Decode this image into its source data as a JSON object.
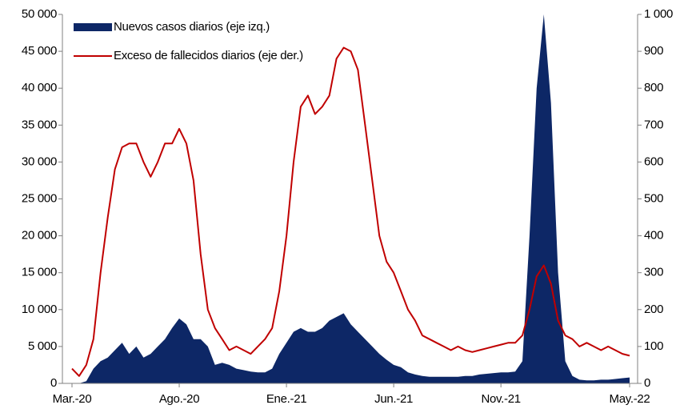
{
  "chart_data": {
    "type": "area-line",
    "categories": [
      "Mar.-20",
      null,
      null,
      null,
      null,
      null,
      null,
      null,
      null,
      null,
      null,
      null,
      null,
      null,
      null,
      "Ago.-20",
      null,
      null,
      null,
      null,
      null,
      null,
      null,
      null,
      null,
      null,
      null,
      null,
      null,
      null,
      "Ene.-21",
      null,
      null,
      null,
      null,
      null,
      null,
      null,
      null,
      null,
      null,
      null,
      null,
      null,
      null,
      "Jun.-21",
      null,
      null,
      null,
      null,
      null,
      null,
      null,
      null,
      null,
      null,
      null,
      null,
      null,
      null,
      "Nov.-21",
      null,
      null,
      null,
      null,
      null,
      null,
      null,
      null,
      null,
      null,
      null,
      null,
      null,
      null,
      null,
      null,
      null,
      "May.-22"
    ],
    "series": [
      {
        "name": "Nuevos casos diarios (eje izq.)",
        "color": "#0d2766",
        "kind": "area",
        "axis": "y",
        "values": [
          0,
          0,
          300,
          2000,
          3000,
          3500,
          4500,
          5500,
          4000,
          5000,
          3500,
          4000,
          5000,
          6000,
          7500,
          8800,
          8000,
          6000,
          6000,
          5000,
          2500,
          2800,
          2500,
          2000,
          1800,
          1600,
          1500,
          1500,
          2000,
          4000,
          5500,
          7000,
          7500,
          7000,
          7000,
          7500,
          8500,
          9000,
          9500,
          8000,
          7000,
          6000,
          5000,
          4000,
          3200,
          2500,
          2200,
          1500,
          1200,
          1000,
          900,
          900,
          900,
          900,
          900,
          1000,
          1000,
          1200,
          1300,
          1400,
          1500,
          1500,
          1600,
          3000,
          20000,
          40000,
          50000,
          38000,
          15000,
          3000,
          1000,
          500,
          400,
          400,
          500,
          500,
          600,
          700,
          800
        ]
      },
      {
        "name": "Exceso de fallecidos diarios (eje der.)",
        "color": "#c00000",
        "kind": "line",
        "axis": "y2",
        "values": [
          40,
          20,
          50,
          120,
          300,
          450,
          580,
          640,
          650,
          650,
          600,
          560,
          600,
          650,
          650,
          690,
          650,
          550,
          350,
          200,
          150,
          120,
          90,
          100,
          90,
          80,
          100,
          120,
          150,
          250,
          400,
          600,
          750,
          780,
          730,
          750,
          780,
          880,
          910,
          900,
          850,
          700,
          550,
          400,
          330,
          300,
          250,
          200,
          170,
          130,
          120,
          110,
          100,
          90,
          100,
          90,
          85,
          90,
          95,
          100,
          105,
          110,
          110,
          130,
          200,
          290,
          320,
          270,
          170,
          130,
          120,
          100,
          110,
          100,
          90,
          100,
          90,
          80,
          75
        ]
      }
    ],
    "ylim": [
      0,
      50000
    ],
    "yticks": [
      0,
      {
        "value": 5000,
        "label": "5 000"
      },
      {
        "value": 10000,
        "label": "10 000"
      },
      {
        "value": 15000,
        "label": "15 000"
      },
      {
        "value": 20000,
        "label": "20 000"
      },
      {
        "value": 25000,
        "label": "25 000"
      },
      {
        "value": 30000,
        "label": "30 000"
      },
      {
        "value": 35000,
        "label": "35 000"
      },
      {
        "value": 40000,
        "label": "40 000"
      },
      {
        "value": 45000,
        "label": "45 000"
      },
      {
        "value": 50000,
        "label": "50 000"
      }
    ],
    "y2lim": [
      0,
      1000
    ],
    "y2ticks": [
      0,
      100,
      200,
      300,
      400,
      500,
      600,
      700,
      800,
      900,
      {
        "value": 1000,
        "label": "1 000"
      }
    ],
    "legend": "upper left",
    "grid": false
  }
}
